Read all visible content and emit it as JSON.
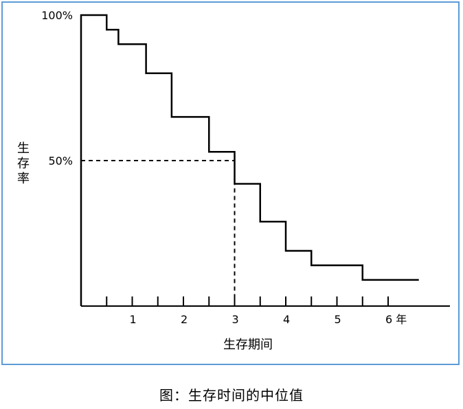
{
  "caption": "图：生存时间的中位值",
  "chart_data": {
    "type": "line",
    "step": true,
    "title": "",
    "xlabel": "生存期间",
    "ylabel": "生存率",
    "xlim": [
      0,
      7.2
    ],
    "ylim": [
      0,
      100
    ],
    "x_ticks": [
      0.5,
      1,
      1.5,
      2,
      2.5,
      3,
      3.5,
      4,
      4.5,
      5,
      5.5,
      6
    ],
    "x_tick_labels": [
      {
        "x": 1,
        "label": "1"
      },
      {
        "x": 2,
        "label": "2"
      },
      {
        "x": 3,
        "label": "3"
      },
      {
        "x": 4,
        "label": "4"
      },
      {
        "x": 5,
        "label": "5"
      },
      {
        "x": 6,
        "label": "6 年"
      }
    ],
    "y_tick_labels": [
      {
        "y": 100,
        "label": "100%"
      },
      {
        "y": 50,
        "label": "50%"
      }
    ],
    "series": [
      {
        "x": [
          0,
          0.5,
          0.73,
          1.27,
          1.77,
          2.5,
          3,
          3.5,
          4,
          4.5,
          5.5,
          6.6
        ],
        "y": [
          100,
          95,
          90,
          80,
          65,
          53,
          42,
          29,
          19,
          14,
          9,
          9
        ]
      }
    ],
    "median": {
      "x": 3,
      "y": 50
    },
    "grid": false,
    "line_color": "#000000",
    "frame_color": "#5b9bd5"
  }
}
